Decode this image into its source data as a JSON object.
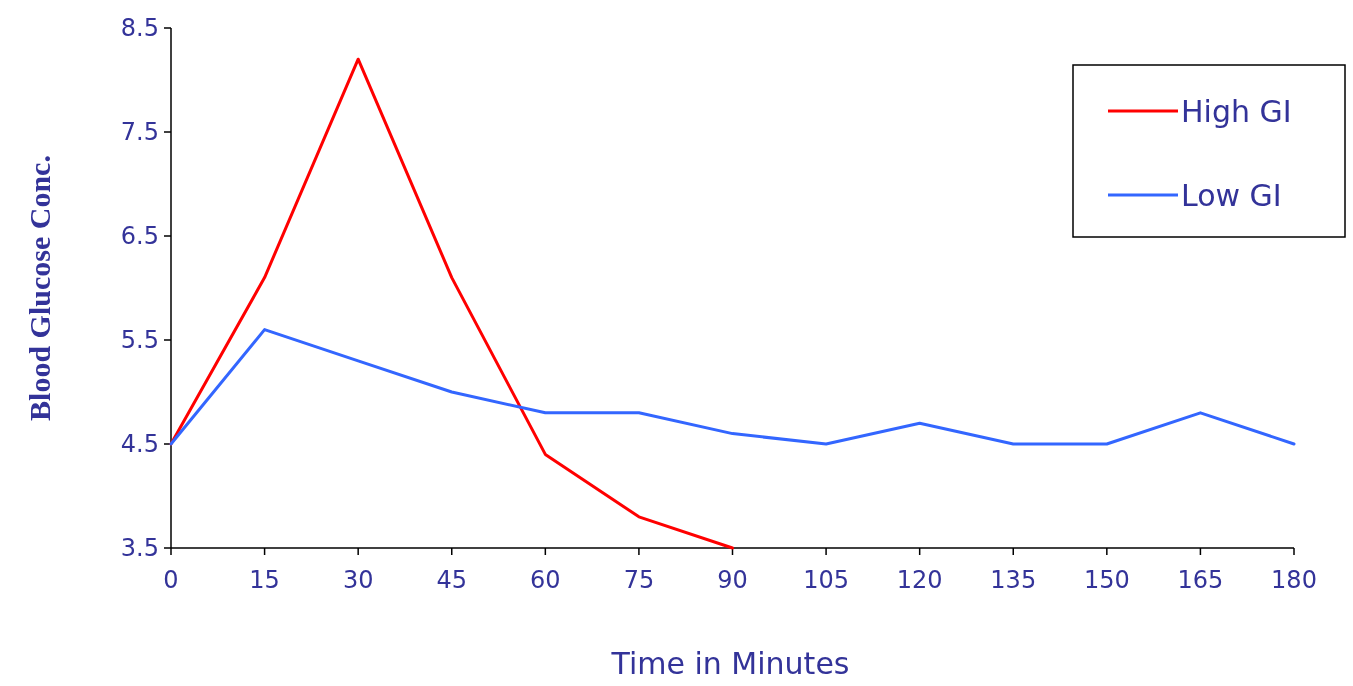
{
  "chart_data": {
    "type": "line",
    "xlabel": "Time in Minutes",
    "ylabel": "Blood Glucose Conc.",
    "x": [
      0,
      15,
      30,
      45,
      60,
      75,
      90,
      105,
      120,
      135,
      150,
      165,
      180
    ],
    "series": [
      {
        "name": "High GI",
        "color": "#ff0000",
        "values": [
          4.5,
          6.1,
          8.2,
          6.1,
          4.4,
          3.8,
          3.5,
          null,
          null,
          null,
          null,
          null,
          null
        ]
      },
      {
        "name": "Low GI",
        "color": "#3366ff",
        "values": [
          4.5,
          5.6,
          5.3,
          5.0,
          4.8,
          4.8,
          4.6,
          4.5,
          4.7,
          4.5,
          4.5,
          4.8,
          4.5
        ]
      }
    ],
    "xlim": [
      0,
      180
    ],
    "xticks": [
      0,
      15,
      30,
      45,
      60,
      75,
      90,
      105,
      120,
      135,
      150,
      165,
      180
    ],
    "ylim": [
      3.5,
      8.5
    ],
    "yticks": [
      {
        "value": 3.5,
        "label": "3.5"
      },
      {
        "value": 4.5,
        "label": "4.5"
      },
      {
        "value": 5.5,
        "label": "5.5"
      },
      {
        "value": 6.5,
        "label": "6.5"
      },
      {
        "value": 7.5,
        "label": "7.5"
      },
      {
        "value": 8.5,
        "label": "8.5"
      }
    ],
    "grid": false,
    "legend": "top right",
    "marker": "none",
    "line_style": "solid"
  }
}
